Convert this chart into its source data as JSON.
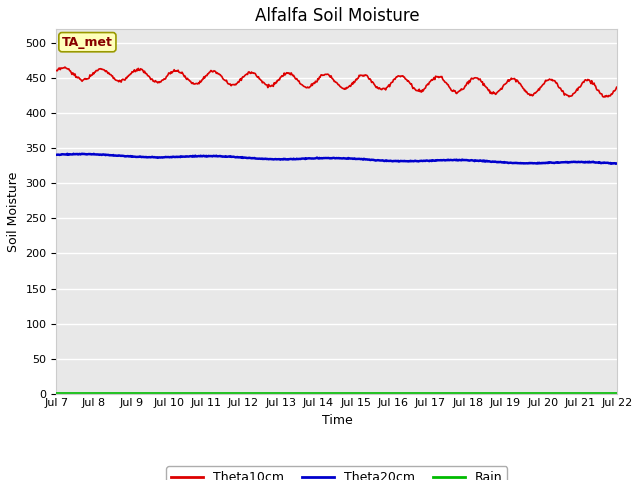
{
  "title": "Alfalfa Soil Moisture",
  "xlabel": "Time",
  "ylabel": "Soil Moisture",
  "ylim": [
    0,
    520
  ],
  "yticks": [
    0,
    50,
    100,
    150,
    200,
    250,
    300,
    350,
    400,
    450,
    500
  ],
  "x_tick_labels": [
    "Jul 7",
    "Jul 8",
    "Jul 9",
    "Jul 10",
    "Jul 11",
    "Jul 12",
    "Jul 13",
    "Jul 14",
    "Jul 15",
    "Jul 16",
    "Jul 17",
    "Jul 18",
    "Jul 19",
    "Jul 20",
    "Jul 21",
    "Jul 22"
  ],
  "theta10_color": "#dd0000",
  "theta20_color": "#0000cc",
  "rain_color": "#00bb00",
  "legend_labels": [
    "Theta10cm",
    "Theta20cm",
    "Rain"
  ],
  "annotation_text": "TA_met",
  "annotation_box_color": "#ffffbb",
  "annotation_border_color": "#999900",
  "plot_bg_color": "#e8e8e8",
  "fig_bg_color": "#ffffff",
  "grid_color": "#ffffff",
  "title_fontsize": 12,
  "axis_label_fontsize": 9,
  "tick_fontsize": 8,
  "legend_fontsize": 9
}
